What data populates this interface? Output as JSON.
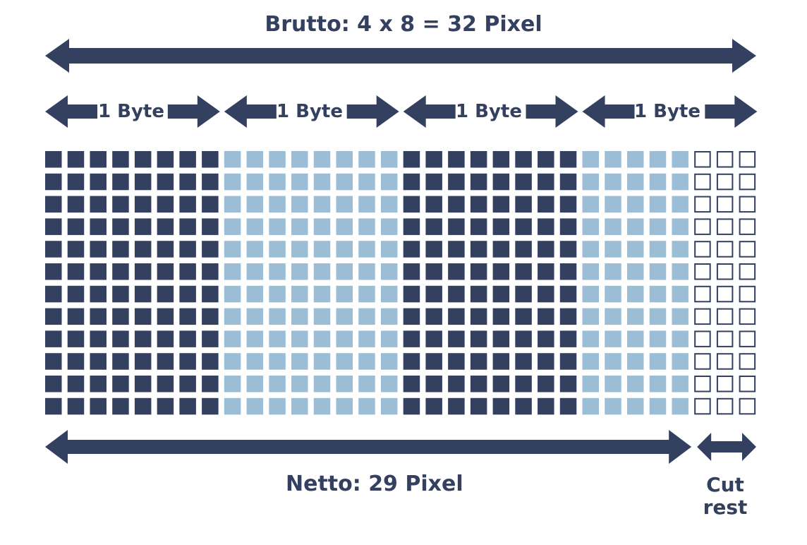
{
  "brutto_label": "Brutto: 4 x 8 = 32 Pixel",
  "byte_labels": [
    "1 Byte",
    "1 Byte",
    "1 Byte",
    "1 Byte"
  ],
  "netto_label": "Netto:  29 Pixel",
  "cut_rest_label": [
    "Cut",
    "rest"
  ],
  "grid": {
    "rows": 12,
    "bytes": 4,
    "bits_per_byte": 8,
    "netto_pixels": 29,
    "cut_rest_pixels": 3
  },
  "colors": {
    "dark": "#34405f",
    "light": "#9bbdd5",
    "empty_fill": "#ffffff"
  }
}
